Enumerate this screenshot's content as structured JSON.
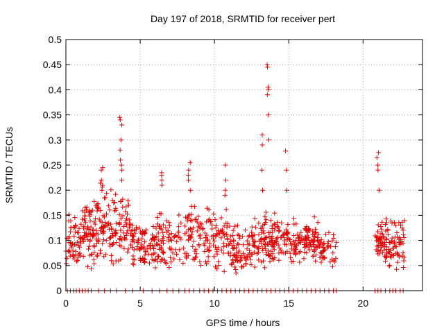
{
  "chart_data": {
    "type": "scatter",
    "title": "Day 197 of 2018, SRMTID for receiver pert",
    "xlabel": "GPS time / hours",
    "ylabel": "SRMTID / TECUs",
    "xlim": [
      0,
      24
    ],
    "ylim": [
      0,
      0.5
    ],
    "xticks": [
      0,
      5,
      10,
      15,
      20
    ],
    "xtick_labels": [
      "0",
      "5",
      "10",
      "15",
      "20"
    ],
    "yticks": [
      0,
      0.05,
      0.1,
      0.15,
      0.2,
      0.25,
      0.3,
      0.35,
      0.4,
      0.45,
      0.5
    ],
    "ytick_labels": [
      "0",
      "0.05",
      "0.1",
      "0.15",
      "0.2",
      "0.25",
      "0.3",
      "0.35",
      "0.4",
      "0.45",
      "0.5"
    ],
    "grid": true,
    "marker": "+",
    "series_color": "#e00000",
    "clusters": [
      {
        "x": [
          0.0,
          1.0
        ],
        "n": 55,
        "ymin": 0.045,
        "ymax": 0.16
      },
      {
        "x": [
          1.0,
          2.0
        ],
        "n": 70,
        "ymin": 0.04,
        "ymax": 0.19
      },
      {
        "x": [
          2.0,
          3.2
        ],
        "n": 75,
        "ymin": 0.04,
        "ymax": 0.22
      },
      {
        "x": [
          3.2,
          4.3
        ],
        "n": 60,
        "ymin": 0.05,
        "ymax": 0.2
      },
      {
        "x": [
          4.3,
          6.0
        ],
        "n": 90,
        "ymin": 0.04,
        "ymax": 0.14
      },
      {
        "x": [
          6.0,
          8.0
        ],
        "n": 85,
        "ymin": 0.03,
        "ymax": 0.16
      },
      {
        "x": [
          8.0,
          9.5
        ],
        "n": 70,
        "ymin": 0.04,
        "ymax": 0.18
      },
      {
        "x": [
          9.5,
          11.2
        ],
        "n": 80,
        "ymin": 0.03,
        "ymax": 0.17
      },
      {
        "x": [
          11.2,
          12.6
        ],
        "n": 75,
        "ymin": 0.03,
        "ymax": 0.14
      },
      {
        "x": [
          12.6,
          14.2
        ],
        "n": 95,
        "ymin": 0.04,
        "ymax": 0.16
      },
      {
        "x": [
          14.2,
          16.0
        ],
        "n": 80,
        "ymin": 0.05,
        "ymax": 0.15
      },
      {
        "x": [
          16.0,
          17.0
        ],
        "n": 70,
        "ymin": 0.05,
        "ymax": 0.15
      },
      {
        "x": [
          17.0,
          18.3
        ],
        "n": 45,
        "ymin": 0.04,
        "ymax": 0.12
      },
      {
        "x": [
          20.8,
          21.5
        ],
        "n": 45,
        "ymin": 0.05,
        "ymax": 0.14
      },
      {
        "x": [
          21.5,
          22.8
        ],
        "n": 75,
        "ymin": 0.04,
        "ymax": 0.15
      }
    ],
    "peaks": [
      {
        "x": 2.4,
        "y": [
          0.2,
          0.21,
          0.22,
          0.24,
          0.245
        ]
      },
      {
        "x": 3.7,
        "y": [
          0.22,
          0.24,
          0.25,
          0.26,
          0.28,
          0.3,
          0.33,
          0.34,
          0.345
        ]
      },
      {
        "x": 6.5,
        "y": [
          0.21,
          0.22,
          0.23,
          0.235
        ]
      },
      {
        "x": 8.3,
        "y": [
          0.2,
          0.22,
          0.23,
          0.24,
          0.255
        ]
      },
      {
        "x": 10.7,
        "y": [
          0.19,
          0.2,
          0.22,
          0.25
        ]
      },
      {
        "x": 13.2,
        "y": [
          0.2,
          0.24,
          0.29,
          0.31
        ]
      },
      {
        "x": 13.6,
        "y": [
          0.3,
          0.35,
          0.39,
          0.4,
          0.405,
          0.445,
          0.45
        ]
      },
      {
        "x": 14.8,
        "y": [
          0.2,
          0.24,
          0.278
        ]
      },
      {
        "x": 21.0,
        "y": [
          0.2,
          0.24,
          0.25,
          0.265,
          0.275
        ]
      }
    ],
    "zero_points_x": [
      0.1,
      0.3,
      0.5,
      0.7,
      0.9,
      1.1,
      1.3,
      1.5,
      1.7,
      2.2,
      2.6,
      3.0,
      3.4,
      4.0,
      4.5,
      5.2,
      5.8,
      6.3,
      6.8,
      7.2,
      7.6,
      8.0,
      8.3,
      8.6,
      9.0,
      9.3,
      9.6,
      9.9,
      10.2,
      10.5,
      10.8,
      11.1,
      11.4,
      11.7,
      12.0,
      12.3,
      12.6,
      12.9,
      13.2,
      13.5,
      13.8,
      14.1,
      14.4,
      14.7,
      15.0,
      15.3,
      15.6,
      15.9,
      16.2,
      16.5,
      16.8,
      17.1,
      17.4,
      17.7,
      18.0,
      18.2,
      20.8,
      21.0,
      21.2,
      21.5,
      21.8,
      22.0,
      22.2,
      22.5,
      22.7
    ]
  }
}
